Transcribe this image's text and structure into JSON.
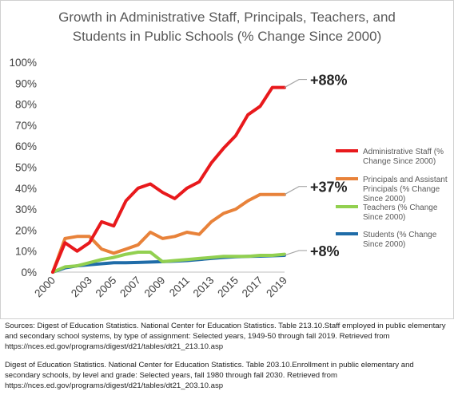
{
  "chart_data": {
    "type": "line",
    "title_lines": [
      "Growth in Administrative Staff, Principals, Teachers, and",
      "Students in Public Schools (% Change Since 2000)"
    ],
    "x": [
      2000,
      2001,
      2002,
      2003,
      2004,
      2005,
      2006,
      2007,
      2008,
      2009,
      2010,
      2011,
      2012,
      2013,
      2014,
      2015,
      2016,
      2017,
      2018,
      2019
    ],
    "x_tick_labels": [
      "2000",
      "2003",
      "2005",
      "2007",
      "2009",
      "2011",
      "2013",
      "2015",
      "2017",
      "2019"
    ],
    "y_tick_labels": [
      "0%",
      "10%",
      "20%",
      "30%",
      "40%",
      "50%",
      "60%",
      "70%",
      "80%",
      "90%",
      "100%"
    ],
    "ylim": [
      0,
      100
    ],
    "grid": false,
    "legend_position": "right",
    "series": [
      {
        "name_lines": [
          "Administrative Staff (%",
          "Change Since 2000)"
        ],
        "color": "#e8191c",
        "values": [
          0,
          14,
          10,
          14,
          24,
          22,
          34,
          40,
          42,
          38,
          35,
          40,
          43,
          52,
          59,
          65,
          75,
          79,
          88,
          88
        ],
        "end_label": "+88%"
      },
      {
        "name_lines": [
          "Principals and Assistant",
          "Principals (% Change",
          "Since 2000)"
        ],
        "color": "#e8823a",
        "values": [
          0,
          16,
          17,
          17,
          11,
          9,
          11,
          13,
          19,
          16,
          17,
          19,
          18,
          24,
          28,
          30,
          34,
          37,
          37,
          37
        ],
        "end_label": "+37%"
      },
      {
        "name_lines": [
          "Teachers (% Change",
          "Since 2000)"
        ],
        "color": "#92d050",
        "values": [
          0,
          2.5,
          3,
          4.5,
          6,
          7,
          8.5,
          9.5,
          9.5,
          5,
          5.5,
          6,
          6.5,
          7,
          7.5,
          7.5,
          7.5,
          8,
          8,
          8.5
        ],
        "end_label": ""
      },
      {
        "name_lines": [
          "Students (% Change",
          "Since 2000)"
        ],
        "color": "#1f6ca8",
        "values": [
          0,
          2,
          3,
          3.5,
          4,
          4.5,
          4.5,
          4.6,
          4.8,
          5,
          5.2,
          5.5,
          6,
          6.5,
          7,
          7.3,
          7.5,
          7.6,
          7.8,
          8
        ],
        "end_label": "+8%"
      }
    ]
  },
  "sources": [
    "Sources: Digest of Education Statistics. National Center for Education Statistics. Table 213.10.Staff employed in public elementary and secondary school systems, by type of assignment: Selected years, 1949-50 through fall 2019. Retrieved from https://nces.ed.gov/programs/digest/d21/tables/dt21_213.10.asp",
    "Digest of Education Statistics. National Center for Education Statistics. Table 203.10.Enrollment in public elementary and secondary schools, by level and grade: Selected years, fall 1980 through fall 2030. Retrieved from https://nces.ed.gov/programs/digest/d21/tables/dt21_203.10.asp"
  ]
}
